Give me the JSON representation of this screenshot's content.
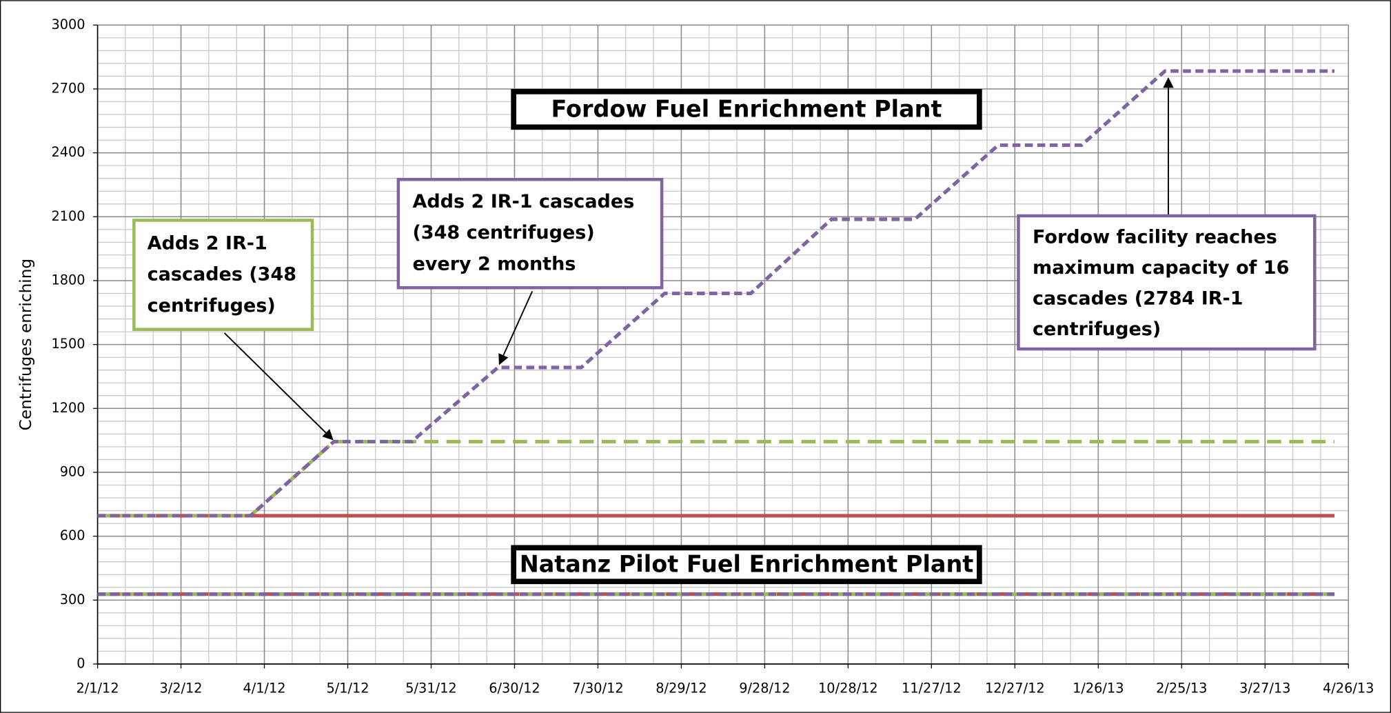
{
  "chart_data": {
    "type": "line",
    "y_label": "Centrifuges enriching",
    "xlim": [
      0,
      450
    ],
    "xticks": [
      {
        "value": 0,
        "label": "2/1/12"
      },
      {
        "value": 30,
        "label": "3/2/12"
      },
      {
        "value": 60,
        "label": "4/1/12"
      },
      {
        "value": 90,
        "label": "5/1/12"
      },
      {
        "value": 120,
        "label": "5/31/12"
      },
      {
        "value": 150,
        "label": "6/30/12"
      },
      {
        "value": 180,
        "label": "7/30/12"
      },
      {
        "value": 210,
        "label": "8/29/12"
      },
      {
        "value": 240,
        "label": "9/28/12"
      },
      {
        "value": 270,
        "label": "10/28/12"
      },
      {
        "value": 300,
        "label": "11/27/12"
      },
      {
        "value": 330,
        "label": "12/27/12"
      },
      {
        "value": 360,
        "label": "1/26/13"
      },
      {
        "value": 390,
        "label": "2/25/13"
      },
      {
        "value": 420,
        "label": "3/27/13"
      },
      {
        "value": 450,
        "label": "4/26/13"
      }
    ],
    "ylim": [
      0,
      3000
    ],
    "yticks": [
      0,
      300,
      600,
      900,
      1200,
      1500,
      1800,
      2100,
      2400,
      2700,
      3000
    ],
    "grid": true,
    "x_minor_step": 10,
    "y_minor_step": 60,
    "series": [
      {
        "color": "#c0504d",
        "dash": "solid",
        "x": [
          0,
          445
        ],
        "values": [
          696,
          696
        ]
      },
      {
        "color": "#9bbb59",
        "dash": "long",
        "x": [
          0,
          55,
          85,
          445
        ],
        "values": [
          696,
          696,
          1044,
          1044
        ]
      },
      {
        "color": "#8064a2",
        "dash": "short",
        "x": [
          0,
          55,
          85,
          113,
          144,
          174,
          204,
          235,
          264,
          294,
          324,
          354,
          384,
          445
        ],
        "values": [
          696,
          696,
          1044,
          1044,
          1392,
          1392,
          1740,
          1740,
          2088,
          2088,
          2436,
          2436,
          2784,
          2784
        ]
      },
      {
        "color": "#c0504d",
        "dash": "solid",
        "x": [
          0,
          445
        ],
        "values": [
          328,
          328
        ]
      },
      {
        "color": "#9bbb59",
        "dash": "long",
        "x": [
          0,
          445
        ],
        "values": [
          328,
          328
        ]
      },
      {
        "color": "#8064a2",
        "dash": "short",
        "x": [
          0,
          445
        ],
        "values": [
          328,
          328
        ]
      }
    ],
    "plant_labels": [
      "Fordow Fuel Enrichment Plant",
      "Natanz Pilot Fuel Enrichment Plant"
    ],
    "annotations": [
      {
        "color": "#9bbb59",
        "lines": [
          "Adds 2 IR-1",
          "cascades (348",
          "centrifuges)"
        ]
      },
      {
        "color": "#8064a2",
        "lines": [
          "Adds 2 IR-1 cascades",
          "(348 centrifuges)",
          "every 2 months"
        ]
      },
      {
        "color": "#8064a2",
        "lines": [
          "Fordow facility reaches",
          "maximum capacity of 16",
          "cascades (2784 IR-1",
          "centrifuges)"
        ]
      }
    ]
  }
}
